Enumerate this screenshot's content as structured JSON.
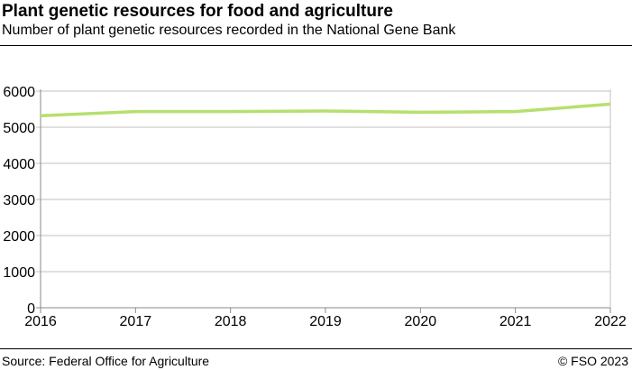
{
  "title": "Plant genetic resources for food and agriculture",
  "subtitle": "Number of plant genetic resources recorded in the National Gene Bank",
  "source": "Source: Federal Office for Agriculture",
  "copyright": "© FSO 2023",
  "chart_data": {
    "type": "line",
    "x": [
      2016,
      2017,
      2018,
      2019,
      2020,
      2021,
      2022
    ],
    "series": [
      {
        "values": [
          5320,
          5435,
          5435,
          5450,
          5415,
          5435,
          5640
        ],
        "color": "#b5e06e"
      }
    ],
    "xlim": [
      2016,
      2022
    ],
    "ylim": [
      0,
      6000
    ],
    "yticks": [
      0,
      1000,
      2000,
      3000,
      4000,
      5000,
      6000
    ],
    "xticks": [
      "2016",
      "2017",
      "2018",
      "2019",
      "2020",
      "2021",
      "2022"
    ],
    "grid": true,
    "legend": "none"
  }
}
